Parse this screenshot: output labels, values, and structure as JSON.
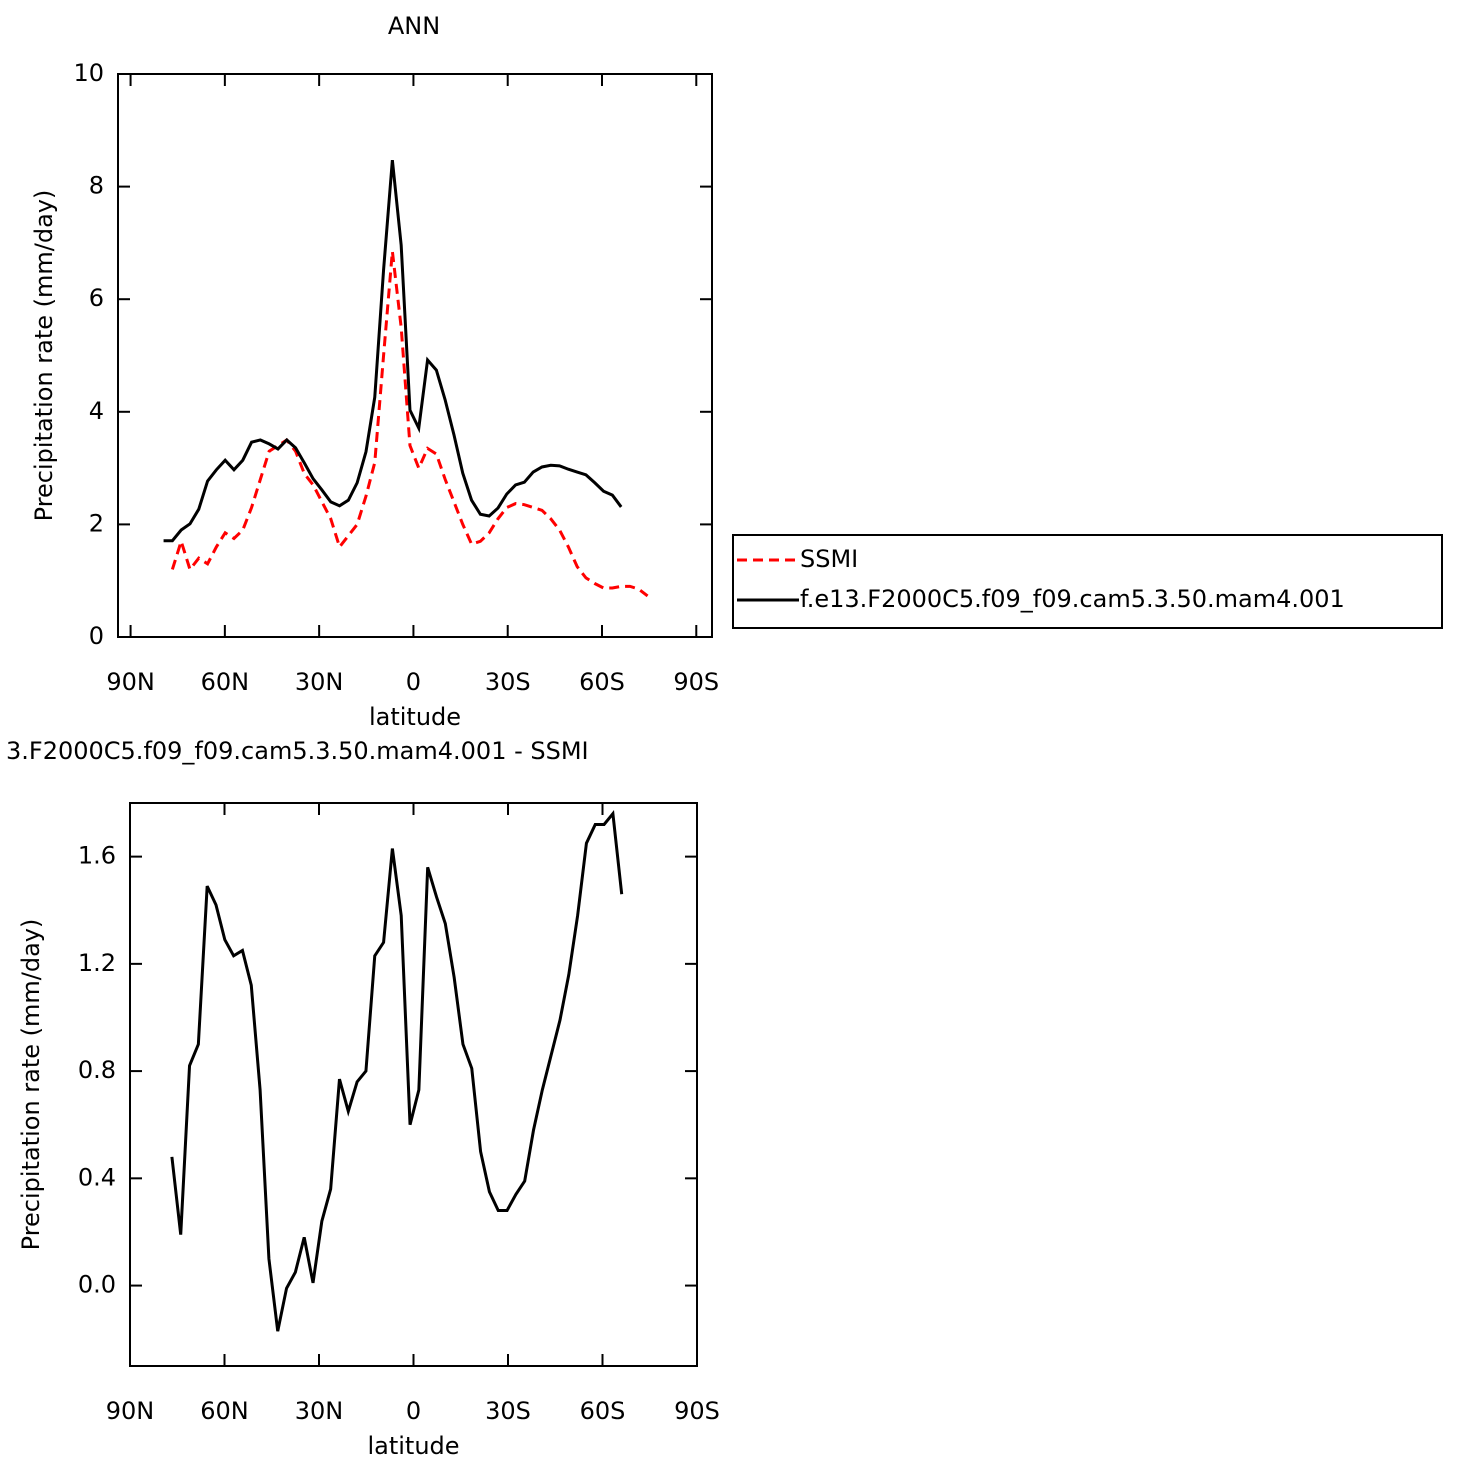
{
  "chart_data": [
    {
      "type": "line",
      "title": "ANN",
      "x_label": "latitude",
      "y_label": "Precipitation rate (mm/day)",
      "x": [
        79.5,
        76.7,
        73.9,
        71.1,
        68.3,
        65.5,
        62.7,
        59.9,
        57.1,
        54.3,
        51.5,
        48.7,
        45.9,
        43.1,
        40.3,
        37.5,
        34.7,
        31.9,
        29.1,
        26.3,
        23.5,
        20.7,
        17.9,
        15.1,
        12.3,
        9.5,
        6.7,
        3.9,
        1.1,
        -1.7,
        -4.5,
        -7.3,
        -10.1,
        -12.9,
        -15.7,
        -18.5,
        -21.3,
        -24.1,
        -26.9,
        -29.7,
        -32.5,
        -35.3,
        -38.1,
        -40.9,
        -43.7,
        -46.5,
        -49.3,
        -52.1,
        -54.9,
        -57.7,
        -60.5,
        -63.3,
        -66.1,
        -68.9,
        -71.7,
        -74.5
      ],
      "xlim": [
        94,
        -95
      ],
      "xticks": [
        {
          "value": 90,
          "label": "90N"
        },
        {
          "value": 60,
          "label": "60N"
        },
        {
          "value": 30,
          "label": "30N"
        },
        0,
        {
          "value": -30,
          "label": "30S"
        },
        {
          "value": -60,
          "label": "60S"
        },
        {
          "value": -90,
          "label": "90S"
        }
      ],
      "ylim": [
        0,
        10
      ],
      "yticks": [
        0,
        2,
        4,
        6,
        8,
        10
      ],
      "legend": "right",
      "series": [
        {
          "name": "SSMI",
          "color": "#ff0000",
          "style": "dashed",
          "values": [
            null,
            1.2,
            1.7,
            1.2,
            1.4,
            1.3,
            1.6,
            1.85,
            1.75,
            1.9,
            2.3,
            2.8,
            3.3,
            3.4,
            3.5,
            3.3,
            2.9,
            2.7,
            2.4,
            2.1,
            1.6,
            1.8,
            2.0,
            2.5,
            3.1,
            5.0,
            6.85,
            5.5,
            3.4,
            3.0,
            3.35,
            3.25,
            2.8,
            2.4,
            2.0,
            1.65,
            1.7,
            1.85,
            2.1,
            2.3,
            2.37,
            2.35,
            2.3,
            2.25,
            2.1,
            1.9,
            1.6,
            1.25,
            1.05,
            0.95,
            0.87,
            0.87,
            0.9,
            0.9,
            0.85,
            0.73
          ]
        },
        {
          "name": "f.e13.F2000C5.f09_f09.cam5.3.50.mam4.001",
          "color": "#000000",
          "style": "solid",
          "values": [
            1.71,
            1.71,
            1.9,
            2.01,
            2.27,
            2.77,
            2.97,
            3.14,
            2.97,
            3.14,
            3.46,
            3.5,
            3.43,
            3.34,
            3.5,
            3.36,
            3.09,
            2.81,
            2.61,
            2.4,
            2.33,
            2.43,
            2.74,
            3.29,
            4.26,
            6.52,
            8.47,
            6.96,
            4.03,
            3.71,
            4.92,
            4.74,
            4.21,
            3.59,
            2.91,
            2.43,
            2.18,
            2.15,
            2.29,
            2.54,
            2.7,
            2.75,
            2.93,
            3.02,
            3.05,
            3.04,
            2.98,
            2.93,
            2.88,
            2.74,
            2.59,
            2.52,
            2.31,
            null,
            null,
            null
          ]
        }
      ]
    },
    {
      "type": "line",
      "title": "3.F2000C5.f09_f09.cam5.3.50.mam4.001 - SSMI",
      "x_label": "latitude",
      "y_label": "Precipitation rate (mm/day)",
      "x": [
        79.5,
        76.7,
        73.9,
        71.1,
        68.3,
        65.5,
        62.7,
        59.9,
        57.1,
        54.3,
        51.5,
        48.7,
        45.9,
        43.1,
        40.3,
        37.5,
        34.7,
        31.9,
        29.1,
        26.3,
        23.5,
        20.7,
        17.9,
        15.1,
        12.3,
        9.5,
        6.7,
        3.9,
        1.1,
        -1.7,
        -4.5,
        -7.3,
        -10.1,
        -12.9,
        -15.7,
        -18.5,
        -21.3,
        -24.1,
        -26.9,
        -29.7,
        -32.5,
        -35.3,
        -38.1,
        -40.9,
        -43.7,
        -46.5,
        -49.3,
        -52.1,
        -54.9,
        -57.7,
        -60.5,
        -63.3,
        -66.1,
        -68.9,
        -71.7,
        -74.5
      ],
      "xlim": [
        90,
        -90
      ],
      "xticks": [
        {
          "value": 90,
          "label": "90N"
        },
        {
          "value": 60,
          "label": "60N"
        },
        {
          "value": 30,
          "label": "30N"
        },
        0,
        {
          "value": -30,
          "label": "30S"
        },
        {
          "value": -60,
          "label": "60S"
        },
        {
          "value": -90,
          "label": "90S"
        }
      ],
      "ylim": [
        -0.3,
        1.8
      ],
      "yticks": [
        {
          "value": 0,
          "label": "0.0"
        },
        0.4,
        0.8,
        1.2,
        1.6
      ],
      "series": [
        {
          "color": "#000000",
          "style": "solid",
          "values": [
            null,
            0.48,
            0.19,
            0.82,
            0.9,
            1.49,
            1.42,
            1.29,
            1.23,
            1.25,
            1.12,
            0.73,
            0.1,
            -0.17,
            -0.01,
            0.05,
            0.18,
            0.01,
            0.24,
            0.36,
            0.77,
            0.65,
            0.76,
            0.8,
            1.23,
            1.28,
            1.63,
            1.38,
            0.6,
            0.73,
            1.56,
            1.45,
            1.35,
            1.15,
            0.9,
            0.81,
            0.5,
            0.35,
            0.28,
            0.28,
            0.34,
            0.39,
            0.58,
            0.73,
            0.86,
            0.99,
            1.16,
            1.38,
            1.65,
            1.72,
            1.72,
            1.76,
            1.46,
            null,
            null,
            null
          ]
        }
      ]
    }
  ]
}
